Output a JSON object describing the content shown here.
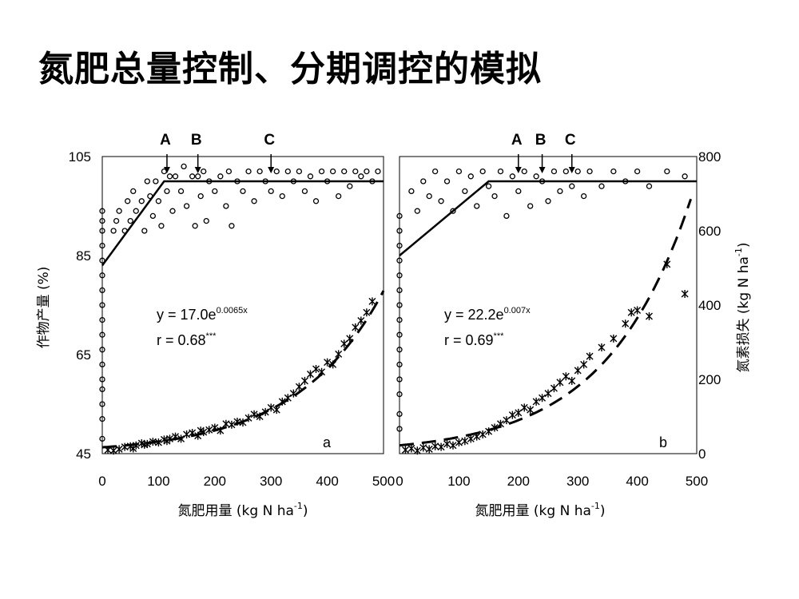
{
  "slide": {
    "title": "氮肥总量控制、分期调控的模拟"
  },
  "chart_data": [
    {
      "type": "scatter",
      "panel_label": "a",
      "xlabel": "氮肥用量 (kg N ha-1)",
      "ylabel_left": "作物产量 (%)",
      "xlim": [
        0,
        500
      ],
      "ylim_left": [
        45,
        105
      ],
      "ylim_right": [
        0,
        800
      ],
      "x_ticks": [
        "0",
        "100",
        "200",
        "300",
        "400",
        "500"
      ],
      "y_left_ticks": [
        "45",
        "65",
        "85",
        "105"
      ],
      "y_right_ticks": [],
      "markers": [
        {
          "label": "A",
          "x": 115
        },
        {
          "label": "B",
          "x": 170
        },
        {
          "label": "C",
          "x": 300
        }
      ],
      "equation": {
        "base": "y = 17.0e",
        "exponent": "0.0065x"
      },
      "correlation": {
        "base": "r = 0.68",
        "sig": "***"
      },
      "yield_fit": {
        "type": "linear-plateau",
        "x": [
          0,
          110,
          500
        ],
        "y": [
          83,
          100,
          100
        ]
      },
      "loss_fit": {
        "type": "exponential",
        "a": 17.0,
        "b": 0.0065,
        "x_range": [
          0,
          500
        ]
      },
      "series": [
        {
          "name": "yield",
          "marker": "circle",
          "points": [
            [
              0,
              48
            ],
            [
              0,
              52
            ],
            [
              0,
              55
            ],
            [
              0,
              58
            ],
            [
              0,
              60
            ],
            [
              0,
              63
            ],
            [
              0,
              66
            ],
            [
              0,
              69
            ],
            [
              0,
              72
            ],
            [
              0,
              75
            ],
            [
              0,
              78
            ],
            [
              0,
              81
            ],
            [
              0,
              84
            ],
            [
              0,
              87
            ],
            [
              0,
              90
            ],
            [
              0,
              92
            ],
            [
              0,
              94
            ],
            [
              20,
              90
            ],
            [
              25,
              92
            ],
            [
              30,
              94
            ],
            [
              40,
              90
            ],
            [
              45,
              96
            ],
            [
              50,
              92
            ],
            [
              55,
              98
            ],
            [
              60,
              94
            ],
            [
              70,
              96
            ],
            [
              75,
              90
            ],
            [
              80,
              100
            ],
            [
              85,
              97
            ],
            [
              90,
              93
            ],
            [
              95,
              100
            ],
            [
              100,
              96
            ],
            [
              105,
              91
            ],
            [
              110,
              102
            ],
            [
              115,
              98
            ],
            [
              120,
              101
            ],
            [
              125,
              94
            ],
            [
              130,
              101
            ],
            [
              140,
              98
            ],
            [
              145,
              103
            ],
            [
              150,
              95
            ],
            [
              160,
              101
            ],
            [
              165,
              91
            ],
            [
              170,
              101
            ],
            [
              175,
              97
            ],
            [
              180,
              102
            ],
            [
              185,
              92
            ],
            [
              190,
              100
            ],
            [
              200,
              98
            ],
            [
              210,
              101
            ],
            [
              220,
              95
            ],
            [
              225,
              102
            ],
            [
              230,
              91
            ],
            [
              240,
              100
            ],
            [
              250,
              98
            ],
            [
              260,
              102
            ],
            [
              270,
              96
            ],
            [
              280,
              102
            ],
            [
              290,
              100
            ],
            [
              300,
              98
            ],
            [
              310,
              102
            ],
            [
              320,
              97
            ],
            [
              330,
              102
            ],
            [
              340,
              100
            ],
            [
              350,
              102
            ],
            [
              360,
              98
            ],
            [
              370,
              101
            ],
            [
              380,
              96
            ],
            [
              390,
              102
            ],
            [
              400,
              100
            ],
            [
              410,
              102
            ],
            [
              420,
              97
            ],
            [
              430,
              102
            ],
            [
              440,
              99
            ],
            [
              450,
              102
            ],
            [
              460,
              101
            ],
            [
              470,
              102
            ],
            [
              480,
              100
            ],
            [
              490,
              102
            ]
          ]
        },
        {
          "name": "nitrogen loss",
          "marker": "cross",
          "axis": "right",
          "points": [
            [
              10,
              10
            ],
            [
              20,
              8
            ],
            [
              30,
              12
            ],
            [
              40,
              18
            ],
            [
              50,
              20
            ],
            [
              55,
              14
            ],
            [
              60,
              22
            ],
            [
              70,
              28
            ],
            [
              75,
              24
            ],
            [
              80,
              26
            ],
            [
              90,
              32
            ],
            [
              100,
              30
            ],
            [
              110,
              38
            ],
            [
              115,
              34
            ],
            [
              120,
              40
            ],
            [
              130,
              46
            ],
            [
              140,
              40
            ],
            [
              150,
              52
            ],
            [
              160,
              56
            ],
            [
              170,
              48
            ],
            [
              175,
              62
            ],
            [
              180,
              58
            ],
            [
              190,
              64
            ],
            [
              200,
              70
            ],
            [
              210,
              62
            ],
            [
              220,
              80
            ],
            [
              230,
              78
            ],
            [
              240,
              86
            ],
            [
              250,
              84
            ],
            [
              260,
              96
            ],
            [
              270,
              106
            ],
            [
              280,
              100
            ],
            [
              290,
              112
            ],
            [
              300,
              124
            ],
            [
              310,
              118
            ],
            [
              320,
              140
            ],
            [
              330,
              150
            ],
            [
              340,
              162
            ],
            [
              350,
              180
            ],
            [
              360,
              196
            ],
            [
              370,
              214
            ],
            [
              380,
              228
            ],
            [
              390,
              220
            ],
            [
              400,
              246
            ],
            [
              410,
              240
            ],
            [
              420,
              268
            ],
            [
              430,
              296
            ],
            [
              440,
              310
            ],
            [
              450,
              340
            ],
            [
              460,
              358
            ],
            [
              470,
              380
            ],
            [
              480,
              410
            ]
          ]
        }
      ]
    },
    {
      "type": "scatter",
      "panel_label": "b",
      "xlabel": "氮肥用量 (kg N ha-1)",
      "ylabel_right": "氮素损失 (kg N ha-1)",
      "xlim": [
        0,
        500
      ],
      "ylim_left": [
        45,
        105
      ],
      "ylim_right": [
        0,
        800
      ],
      "x_ticks": [
        "0",
        "100",
        "200",
        "300",
        "400",
        "500"
      ],
      "y_left_ticks": [],
      "y_right_ticks": [
        "0",
        "200",
        "400",
        "600",
        "800"
      ],
      "markers": [
        {
          "label": "A",
          "x": 200
        },
        {
          "label": "B",
          "x": 240
        },
        {
          "label": "C",
          "x": 290
        }
      ],
      "equation": {
        "base": "y = 22.2e",
        "exponent": "0.007x"
      },
      "correlation": {
        "base": "r = 0.69",
        "sig": "***"
      },
      "yield_fit": {
        "type": "linear-plateau",
        "x": [
          0,
          150,
          500
        ],
        "y": [
          85,
          100,
          100
        ]
      },
      "loss_fit": {
        "type": "exponential",
        "a": 22.2,
        "b": 0.007,
        "x_range": [
          0,
          490
        ]
      },
      "series": [
        {
          "name": "yield",
          "marker": "circle",
          "points": [
            [
              0,
              50
            ],
            [
              0,
              53
            ],
            [
              0,
              57
            ],
            [
              0,
              60
            ],
            [
              0,
              63
            ],
            [
              0,
              66
            ],
            [
              0,
              69
            ],
            [
              0,
              72
            ],
            [
              0,
              75
            ],
            [
              0,
              78
            ],
            [
              0,
              81
            ],
            [
              0,
              84
            ],
            [
              0,
              87
            ],
            [
              0,
              90
            ],
            [
              0,
              93
            ],
            [
              20,
              98
            ],
            [
              30,
              94
            ],
            [
              40,
              100
            ],
            [
              50,
              97
            ],
            [
              60,
              102
            ],
            [
              70,
              96
            ],
            [
              80,
              100
            ],
            [
              90,
              94
            ],
            [
              100,
              102
            ],
            [
              110,
              98
            ],
            [
              120,
              101
            ],
            [
              130,
              95
            ],
            [
              140,
              102
            ],
            [
              150,
              99
            ],
            [
              160,
              97
            ],
            [
              170,
              102
            ],
            [
              180,
              93
            ],
            [
              190,
              101
            ],
            [
              200,
              98
            ],
            [
              210,
              102
            ],
            [
              220,
              95
            ],
            [
              230,
              101
            ],
            [
              240,
              100
            ],
            [
              250,
              96
            ],
            [
              260,
              102
            ],
            [
              270,
              98
            ],
            [
              280,
              102
            ],
            [
              290,
              99
            ],
            [
              300,
              102
            ],
            [
              310,
              97
            ],
            [
              320,
              102
            ],
            [
              340,
              99
            ],
            [
              360,
              102
            ],
            [
              380,
              100
            ],
            [
              400,
              102
            ],
            [
              420,
              99
            ],
            [
              450,
              102
            ],
            [
              480,
              101
            ]
          ]
        },
        {
          "name": "nitrogen loss",
          "marker": "cross",
          "axis": "right",
          "points": [
            [
              10,
              10
            ],
            [
              20,
              14
            ],
            [
              30,
              8
            ],
            [
              40,
              16
            ],
            [
              50,
              12
            ],
            [
              60,
              20
            ],
            [
              70,
              18
            ],
            [
              80,
              26
            ],
            [
              90,
              22
            ],
            [
              100,
              30
            ],
            [
              110,
              34
            ],
            [
              120,
              40
            ],
            [
              130,
              46
            ],
            [
              140,
              52
            ],
            [
              150,
              60
            ],
            [
              160,
              70
            ],
            [
              170,
              80
            ],
            [
              180,
              90
            ],
            [
              190,
              104
            ],
            [
              200,
              110
            ],
            [
              210,
              124
            ],
            [
              220,
              118
            ],
            [
              230,
              140
            ],
            [
              240,
              150
            ],
            [
              250,
              162
            ],
            [
              260,
              176
            ],
            [
              270,
              192
            ],
            [
              280,
              208
            ],
            [
              290,
              196
            ],
            [
              300,
              224
            ],
            [
              310,
              240
            ],
            [
              320,
              262
            ],
            [
              340,
              286
            ],
            [
              360,
              310
            ],
            [
              380,
              350
            ],
            [
              390,
              380
            ],
            [
              400,
              386
            ],
            [
              420,
              370
            ],
            [
              450,
              510
            ],
            [
              480,
              430
            ]
          ]
        }
      ]
    }
  ]
}
